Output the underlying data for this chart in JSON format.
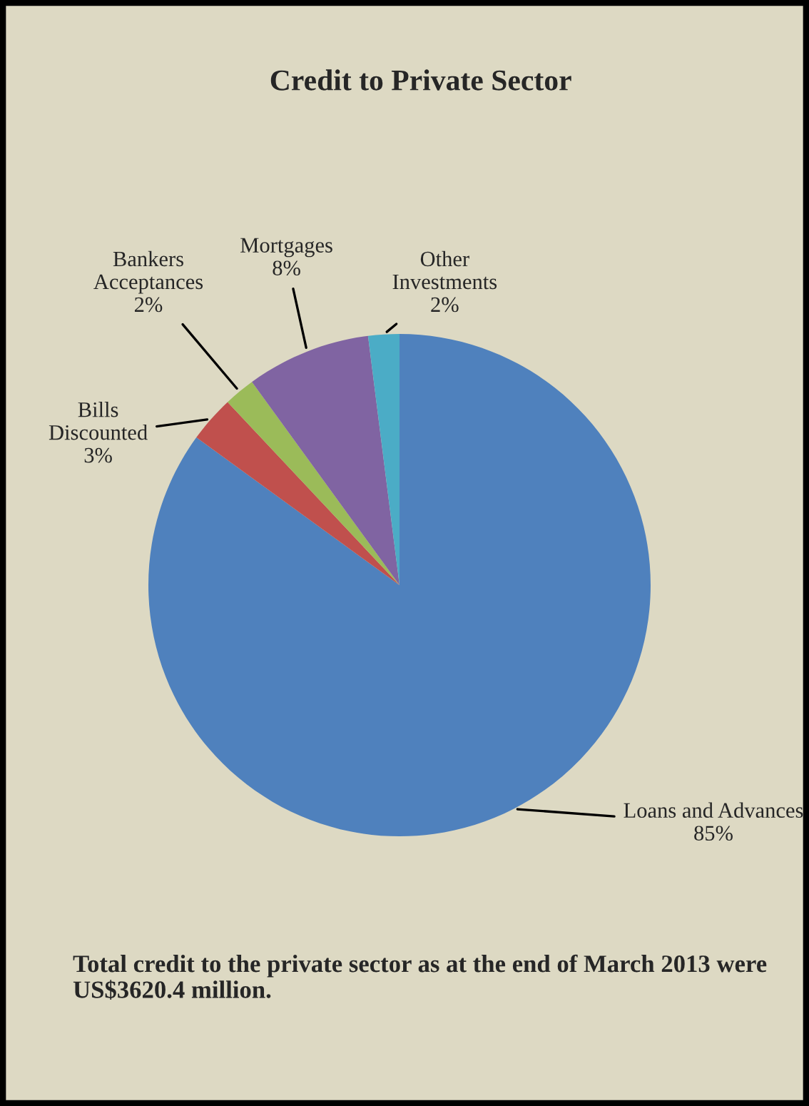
{
  "chart_data": {
    "type": "pie",
    "title": "Credit to Private Sector",
    "categories": [
      "Loans and Advances",
      "Bills Discounted",
      "Bankers Acceptances",
      "Mortgages",
      "Other Investments"
    ],
    "values": [
      85,
      3,
      2,
      8,
      2
    ],
    "value_labels": [
      "85%",
      "3%",
      "2%",
      "8%",
      "2%"
    ],
    "colors": [
      "#4f81bd",
      "#c0504d",
      "#9bbb59",
      "#8064a2",
      "#4bacc6"
    ],
    "annotations": [
      "Total credit to the private sector as at the end of March 2013 were US$3620.4 million."
    ]
  }
}
